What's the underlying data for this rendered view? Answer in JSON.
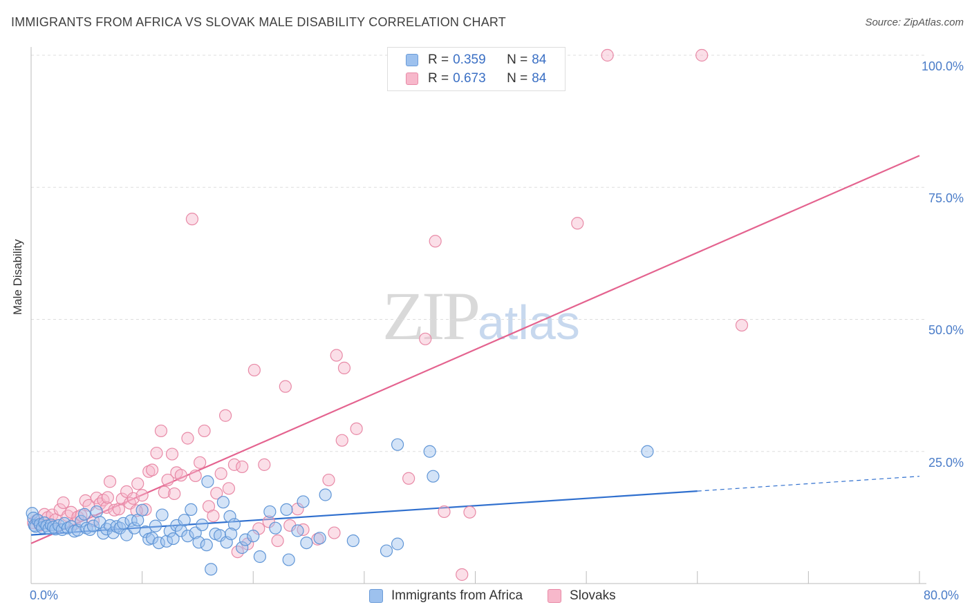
{
  "header": {
    "title": "IMMIGRANTS FROM AFRICA VS SLOVAK MALE DISABILITY CORRELATION CHART",
    "source": "Source: ZipAtlas.com"
  },
  "watermark": {
    "zip": "ZIP",
    "atlas": "atlas"
  },
  "legend": {
    "rows": [
      {
        "r_label": "R =",
        "r_value": "0.359",
        "n_label": "N =",
        "n_value": "84",
        "color": "#9dc1ee",
        "border": "#6a9bd8"
      },
      {
        "r_label": "R =",
        "r_value": "0.673",
        "n_label": "N =",
        "n_value": "84",
        "color": "#f7b8cb",
        "border": "#e889a6"
      }
    ]
  },
  "bottom_legend": [
    {
      "label": "Immigrants from Africa",
      "color": "#9dc1ee",
      "border": "#6a9bd8"
    },
    {
      "label": "Slovaks",
      "color": "#f7b8cb",
      "border": "#e889a6"
    }
  ],
  "colors": {
    "blue_fill": "#9dc1ee",
    "blue_stroke": "#5f95d6",
    "blue_line": "#2f6fce",
    "pink_fill": "#f7b8cb",
    "pink_stroke": "#e889a6",
    "pink_line": "#e4638f",
    "grid": "#dddddd",
    "tick_text": "#4a7cc8"
  },
  "chart_data": {
    "type": "scatter",
    "title": "IMMIGRANTS FROM AFRICA VS SLOVAK MALE DISABILITY CORRELATION CHART",
    "xlabel": "",
    "ylabel": "Male Disability",
    "x_tick_labels": [
      "0.0%",
      "80.0%"
    ],
    "y_tick_labels": [
      "100.0%",
      "75.0%",
      "50.0%",
      "25.0%"
    ],
    "y_tick_values": [
      100,
      75,
      50,
      25
    ],
    "xlim": [
      0,
      80
    ],
    "ylim": [
      0,
      100
    ],
    "grid": true,
    "series": [
      {
        "name": "Immigrants from Africa",
        "r": 0.359,
        "n": 84,
        "trend": {
          "x0": 0,
          "y0": 9.2,
          "x1": 60,
          "y1": 17.5,
          "dashed_to_x": 80,
          "dashed_to_y": 20.3
        },
        "points": [
          [
            0.1,
            13.3
          ],
          [
            0.2,
            12.4
          ],
          [
            0.3,
            11.0
          ],
          [
            0.4,
            10.8
          ],
          [
            0.6,
            12.0
          ],
          [
            0.8,
            11.2
          ],
          [
            1.0,
            10.6
          ],
          [
            1.2,
            11.5
          ],
          [
            1.4,
            10.9
          ],
          [
            1.6,
            10.4
          ],
          [
            1.8,
            11.1
          ],
          [
            2.0,
            10.7
          ],
          [
            2.2,
            10.3
          ],
          [
            2.5,
            11.0
          ],
          [
            2.8,
            10.2
          ],
          [
            3.0,
            11.4
          ],
          [
            3.3,
            10.5
          ],
          [
            3.6,
            10.8
          ],
          [
            3.9,
            9.9
          ],
          [
            4.2,
            10.1
          ],
          [
            4.5,
            11.8
          ],
          [
            4.8,
            13.1
          ],
          [
            5.0,
            10.5
          ],
          [
            5.3,
            10.2
          ],
          [
            5.6,
            10.9
          ],
          [
            5.9,
            13.6
          ],
          [
            6.2,
            11.6
          ],
          [
            6.5,
            9.5
          ],
          [
            6.8,
            10.3
          ],
          [
            7.1,
            11.0
          ],
          [
            7.4,
            9.6
          ],
          [
            7.7,
            10.8
          ],
          [
            8.0,
            10.5
          ],
          [
            8.3,
            11.4
          ],
          [
            8.6,
            9.2
          ],
          [
            9.0,
            11.9
          ],
          [
            9.3,
            10.5
          ],
          [
            9.6,
            12.0
          ],
          [
            10.0,
            13.9
          ],
          [
            10.3,
            9.8
          ],
          [
            10.6,
            8.4
          ],
          [
            10.9,
            8.6
          ],
          [
            11.2,
            10.9
          ],
          [
            11.5,
            7.7
          ],
          [
            11.8,
            13.0
          ],
          [
            12.2,
            8.0
          ],
          [
            12.5,
            9.9
          ],
          [
            12.8,
            8.5
          ],
          [
            13.1,
            11.0
          ],
          [
            13.5,
            10.0
          ],
          [
            13.8,
            12.0
          ],
          [
            14.1,
            9.0
          ],
          [
            14.4,
            14.0
          ],
          [
            14.8,
            9.6
          ],
          [
            15.1,
            7.8
          ],
          [
            15.4,
            11.1
          ],
          [
            15.8,
            7.3
          ],
          [
            15.9,
            19.3
          ],
          [
            16.2,
            2.7
          ],
          [
            16.6,
            9.4
          ],
          [
            17.0,
            9.1
          ],
          [
            17.3,
            15.4
          ],
          [
            17.6,
            7.8
          ],
          [
            17.9,
            12.7
          ],
          [
            18.3,
            11.2
          ],
          [
            18.0,
            9.4
          ],
          [
            19.0,
            6.8
          ],
          [
            19.3,
            8.3
          ],
          [
            20.0,
            9.0
          ],
          [
            20.6,
            5.1
          ],
          [
            21.5,
            13.6
          ],
          [
            22.0,
            10.5
          ],
          [
            23.0,
            14.0
          ],
          [
            23.2,
            4.5
          ],
          [
            24.0,
            10.0
          ],
          [
            24.5,
            15.5
          ],
          [
            24.8,
            7.7
          ],
          [
            26.0,
            8.6
          ],
          [
            26.5,
            16.8
          ],
          [
            29.0,
            8.1
          ],
          [
            32.0,
            6.2
          ],
          [
            33.0,
            7.5
          ],
          [
            33.0,
            26.3
          ],
          [
            35.9,
            25.0
          ],
          [
            36.2,
            20.3
          ],
          [
            55.5,
            25.0
          ]
        ]
      },
      {
        "name": "Slovaks",
        "r": 0.673,
        "n": 84,
        "trend": {
          "x0": 0,
          "y0": 7.6,
          "x1": 80,
          "y1": 81.0
        },
        "points": [
          [
            0.2,
            11.5
          ],
          [
            0.5,
            12.0
          ],
          [
            0.8,
            11.0
          ],
          [
            1.2,
            13.1
          ],
          [
            1.5,
            12.5
          ],
          [
            1.9,
            13.0
          ],
          [
            2.2,
            12.1
          ],
          [
            2.6,
            14.0
          ],
          [
            2.9,
            15.3
          ],
          [
            3.3,
            12.8
          ],
          [
            3.6,
            13.5
          ],
          [
            3.9,
            11.3
          ],
          [
            4.2,
            12.6
          ],
          [
            4.5,
            12.9
          ],
          [
            4.9,
            15.7
          ],
          [
            5.2,
            14.8
          ],
          [
            5.6,
            11.9
          ],
          [
            5.9,
            16.2
          ],
          [
            6.2,
            15.1
          ],
          [
            6.5,
            15.8
          ],
          [
            6.8,
            14.4
          ],
          [
            7.1,
            19.3
          ],
          [
            7.5,
            13.9
          ],
          [
            7.9,
            14.1
          ],
          [
            8.2,
            16.0
          ],
          [
            8.6,
            17.4
          ],
          [
            8.9,
            15.2
          ],
          [
            9.2,
            16.1
          ],
          [
            9.6,
            18.9
          ],
          [
            10.0,
            16.7
          ],
          [
            10.3,
            14.0
          ],
          [
            10.6,
            21.2
          ],
          [
            10.9,
            21.5
          ],
          [
            11.3,
            24.7
          ],
          [
            11.7,
            28.9
          ],
          [
            12.0,
            17.3
          ],
          [
            12.3,
            19.6
          ],
          [
            12.7,
            24.5
          ],
          [
            13.1,
            21.0
          ],
          [
            13.5,
            20.5
          ],
          [
            14.1,
            27.5
          ],
          [
            14.5,
            69.0
          ],
          [
            14.8,
            20.4
          ],
          [
            15.2,
            22.9
          ],
          [
            15.6,
            28.9
          ],
          [
            16.0,
            14.6
          ],
          [
            16.4,
            12.8
          ],
          [
            16.7,
            17.1
          ],
          [
            17.1,
            20.8
          ],
          [
            17.5,
            31.8
          ],
          [
            17.8,
            18.0
          ],
          [
            18.3,
            22.5
          ],
          [
            18.6,
            6.0
          ],
          [
            19.0,
            22.1
          ],
          [
            19.5,
            7.5
          ],
          [
            20.1,
            40.4
          ],
          [
            20.5,
            10.4
          ],
          [
            21.0,
            22.5
          ],
          [
            21.4,
            11.7
          ],
          [
            22.2,
            8.1
          ],
          [
            22.9,
            37.3
          ],
          [
            23.3,
            11.0
          ],
          [
            24.0,
            14.1
          ],
          [
            25.8,
            8.4
          ],
          [
            26.8,
            19.6
          ],
          [
            27.3,
            9.6
          ],
          [
            27.5,
            43.2
          ],
          [
            28.0,
            27.1
          ],
          [
            28.2,
            40.8
          ],
          [
            29.3,
            29.3
          ],
          [
            34.0,
            19.9
          ],
          [
            35.5,
            46.3
          ],
          [
            36.4,
            64.8
          ],
          [
            37.2,
            13.6
          ],
          [
            38.8,
            1.7
          ],
          [
            39.5,
            13.5
          ],
          [
            49.2,
            68.2
          ],
          [
            51.9,
            100.0
          ],
          [
            60.4,
            100.0
          ],
          [
            64.0,
            48.9
          ],
          [
            24.5,
            10.2
          ],
          [
            12.9,
            17.0
          ],
          [
            9.5,
            13.8
          ],
          [
            6.9,
            16.3
          ]
        ]
      }
    ]
  }
}
